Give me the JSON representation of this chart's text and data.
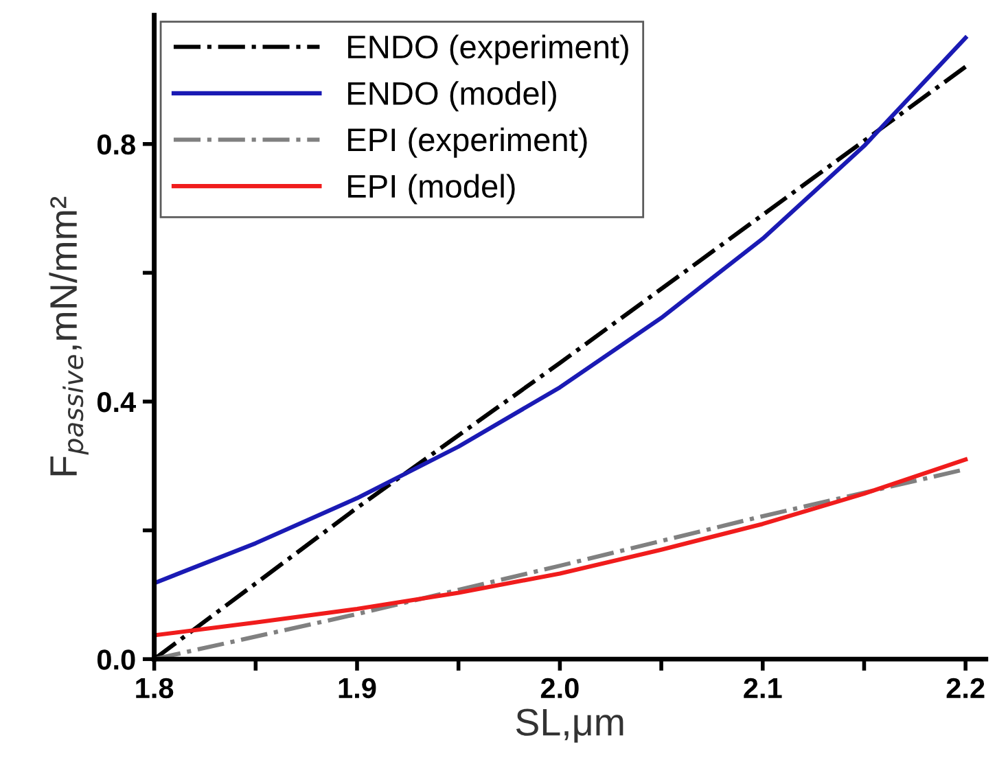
{
  "chart_data": {
    "type": "line",
    "xlabel": "SL,μm",
    "ylabel": "F$_{passive}$,mN/mm²",
    "xlim": [
      1.8,
      2.21
    ],
    "ylim": [
      0,
      1.0
    ],
    "xticks": [
      {
        "value": 1.8,
        "label": "1.8"
      },
      {
        "value": 1.85,
        "label": null
      },
      {
        "value": 1.9,
        "label": "1.9"
      },
      {
        "value": 1.95,
        "label": null
      },
      {
        "value": 2.0,
        "label": "2.0"
      },
      {
        "value": 2.05,
        "label": null
      },
      {
        "value": 2.1,
        "label": "2.1"
      },
      {
        "value": 2.15,
        "label": null
      },
      {
        "value": 2.2,
        "label": "2.2"
      }
    ],
    "yticks": [
      {
        "value": 0,
        "label": "0.0"
      },
      {
        "value": 0.2,
        "label": null
      },
      {
        "value": 0.4,
        "label": "0.4"
      },
      {
        "value": 0.6,
        "label": null
      },
      {
        "value": 0.8,
        "label": "0.8"
      }
    ],
    "legend": "top left",
    "grid": false,
    "marker": "none",
    "series": [
      {
        "name": "ENDO (experiment)",
        "color": "#000000",
        "line_style": "dashdot",
        "x": [
          1.8,
          1.9,
          2.0,
          2.1,
          2.2
        ],
        "values": [
          0,
          0.235,
          0.46,
          0.69,
          0.92
        ]
      },
      {
        "name": "ENDO (model)",
        "color": "#1a1ab4",
        "line_style": "solid",
        "x": [
          1.8,
          1.85,
          1.9,
          1.95,
          2.0,
          2.05,
          2.1,
          2.15,
          2.2
        ],
        "values": [
          0.118,
          0.18,
          0.25,
          0.33,
          0.422,
          0.53,
          0.653,
          0.797,
          0.965
        ]
      },
      {
        "name": "EPI (experiment)",
        "color": "#808080",
        "line_style": "dashdot",
        "x": [
          1.8,
          1.9,
          2.0,
          2.1,
          2.2
        ],
        "values": [
          0,
          0.07,
          0.145,
          0.222,
          0.295
        ]
      },
      {
        "name": "EPI (model)",
        "color": "#f01c1c",
        "line_style": "solid",
        "x": [
          1.8,
          1.85,
          1.9,
          1.95,
          2.0,
          2.05,
          2.1,
          2.15,
          2.2
        ],
        "values": [
          0.037,
          0.057,
          0.078,
          0.103,
          0.133,
          0.17,
          0.21,
          0.257,
          0.31
        ]
      }
    ]
  }
}
